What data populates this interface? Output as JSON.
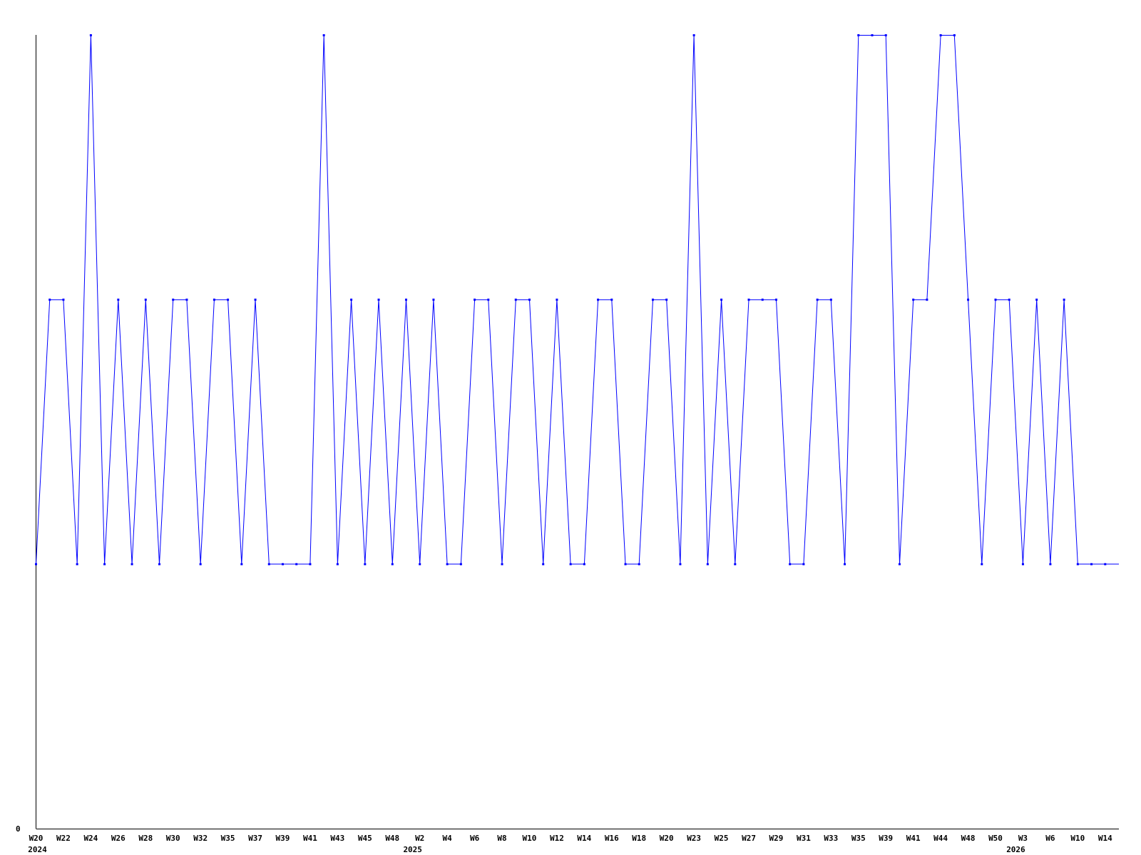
{
  "chart_data": {
    "type": "line",
    "title": "",
    "xlabel": "",
    "ylabel": "",
    "ylim": [
      0,
      3
    ],
    "y_tick_labels": [
      "0"
    ],
    "grid": false,
    "line_color": "#0000ff",
    "values": [
      1,
      2,
      2,
      1,
      3,
      1,
      2,
      1,
      2,
      1,
      2,
      2,
      1,
      2,
      2,
      1,
      2,
      1,
      1,
      1,
      1,
      3,
      1,
      2,
      1,
      2,
      1,
      2,
      1,
      2,
      1,
      1,
      2,
      2,
      1,
      2,
      2,
      1,
      2,
      1,
      1,
      2,
      2,
      1,
      1,
      2,
      2,
      1,
      3,
      1,
      2,
      1,
      2,
      2,
      2,
      1,
      1,
      2,
      2,
      1,
      3,
      3,
      3,
      1,
      2,
      2,
      3,
      3,
      2,
      1,
      2,
      2,
      1,
      2,
      1,
      2,
      1,
      1,
      1,
      1
    ],
    "x_tick_labels_every_2nd_point": [
      "W20",
      "W22",
      "W24",
      "W26",
      "W28",
      "W30",
      "W32",
      "W35",
      "W37",
      "W39",
      "W41",
      "W43",
      "W45",
      "W48",
      "W2",
      "W4",
      "W6",
      "W8",
      "W10",
      "W12",
      "W14",
      "W16",
      "W18",
      "W20",
      "W23",
      "W25",
      "W27",
      "W29",
      "W31",
      "W33",
      "W35",
      "W39",
      "W41",
      "W44",
      "W48",
      "W50",
      "W3",
      "W6",
      "W10",
      "W14"
    ],
    "year_labels": [
      {
        "label": "2024",
        "point_index": 0
      },
      {
        "label": "2025",
        "point_index": 28
      },
      {
        "label": "2026",
        "point_index": 72
      }
    ]
  }
}
